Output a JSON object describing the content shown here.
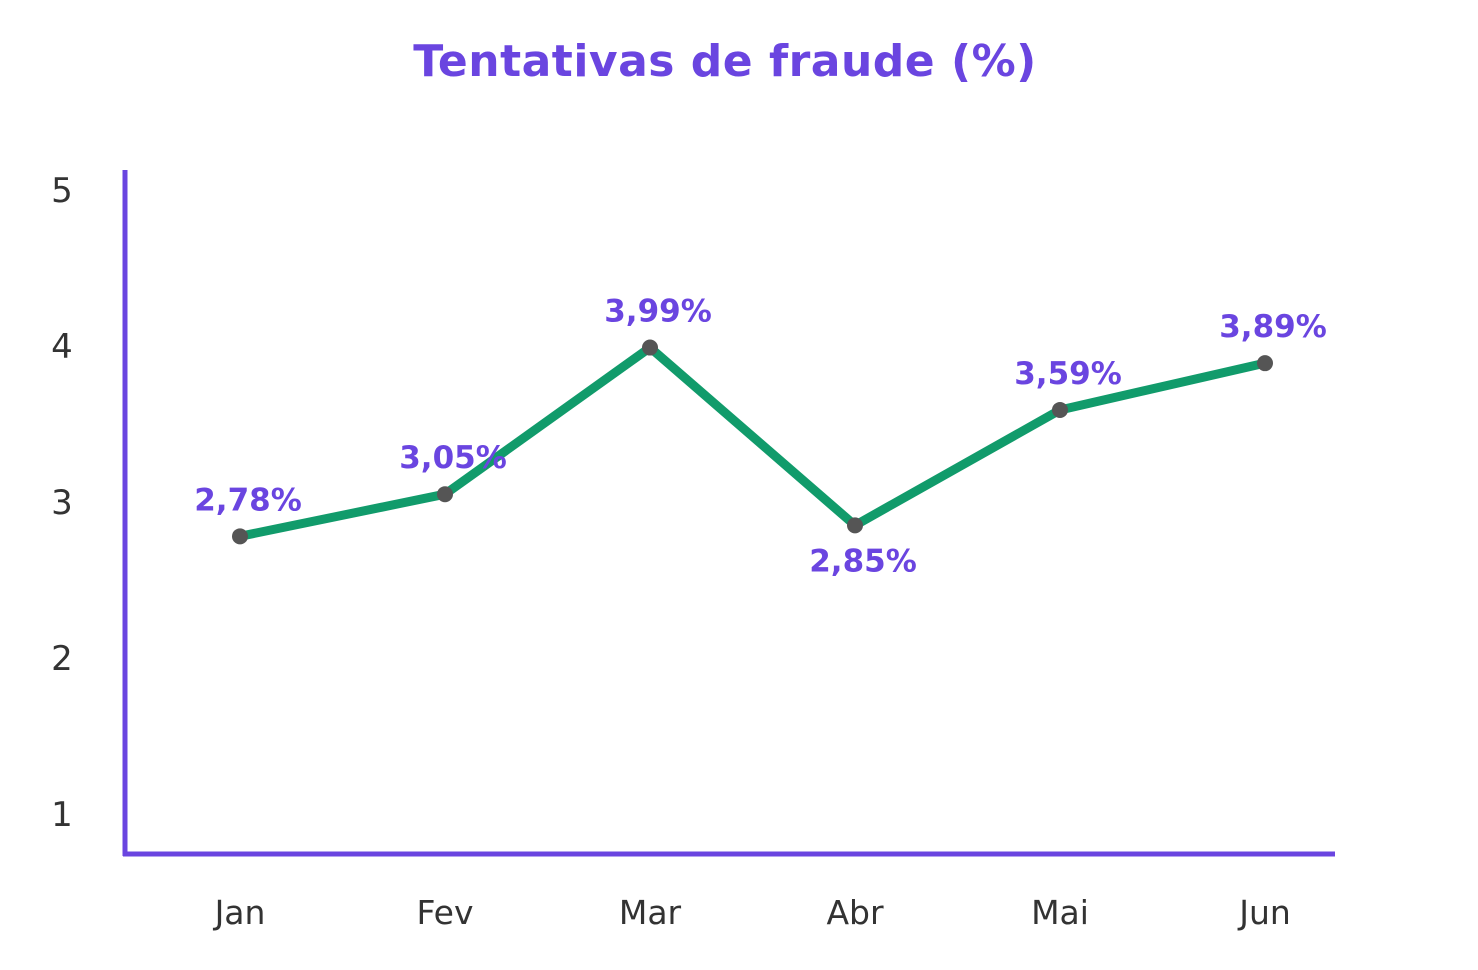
{
  "chart_data": {
    "type": "line",
    "title": "Tentativas de fraude (%)",
    "xlabel": "",
    "ylabel": "",
    "categories": [
      "Jan",
      "Fev",
      "Mar",
      "Abr",
      "Mai",
      "Jun"
    ],
    "series": [
      {
        "values": [
          2.78,
          3.05,
          3.99,
          2.85,
          3.59,
          3.89
        ],
        "labels": [
          "2,78%",
          "3,05%",
          "3,99%",
          "2,85%",
          "3,59%",
          "3,89%"
        ],
        "label_positions": [
          "above",
          "above",
          "above",
          "below",
          "above",
          "above"
        ]
      }
    ],
    "yticks": [
      "1",
      "2",
      "3",
      "4",
      "5"
    ],
    "ylim": [
      0.7,
      5.1
    ],
    "grid": false,
    "legend": "none",
    "colors": {
      "title": "#6a45e0",
      "axis": "#6a45e0",
      "line": "#119b6b",
      "marker": "#555555",
      "data_label": "#6a45e0",
      "tick_label": "#333333"
    }
  }
}
